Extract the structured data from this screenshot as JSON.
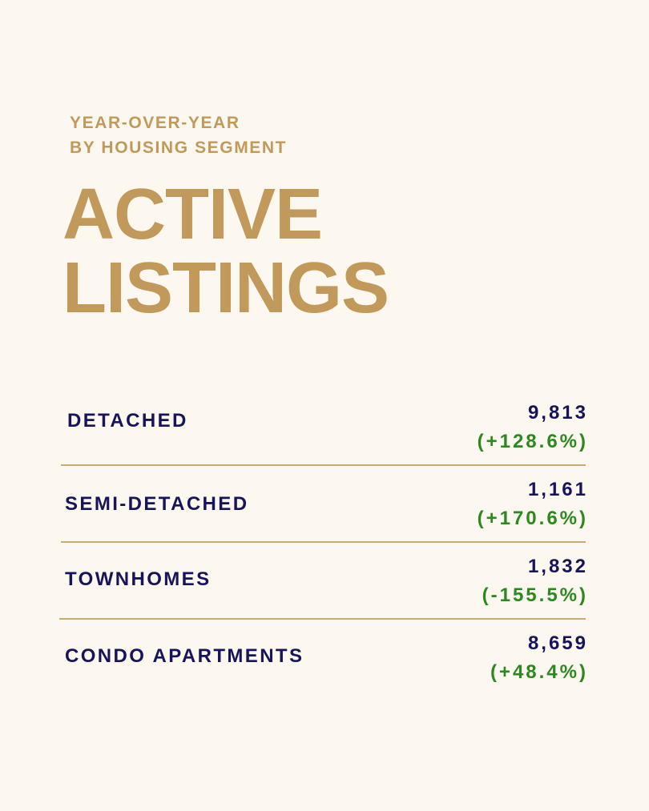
{
  "header": {
    "subtitle_line_1": "YEAR-OVER-YEAR",
    "subtitle_line_2": "BY HOUSING SEGMENT",
    "title_line_1": "ACTIVE",
    "title_line_2": "LISTINGS"
  },
  "segments": [
    {
      "label": "DETACHED",
      "value": "9,813",
      "change": "(+128.6%)"
    },
    {
      "label": "SEMI-DETACHED",
      "value": "1,161",
      "change": "(+170.6%)"
    },
    {
      "label": "TOWNHOMES",
      "value": "1,832",
      "change": "(-155.5%)"
    },
    {
      "label": "CONDO APARTMENTS",
      "value": "8,659",
      "change": "(+48.4%)"
    }
  ],
  "colors": {
    "background": "#fcf7ef",
    "accent_gold": "#c19a5b",
    "label_navy": "#17145c",
    "positive_green": "#2b8a1f",
    "divider": "#c9ab73"
  }
}
